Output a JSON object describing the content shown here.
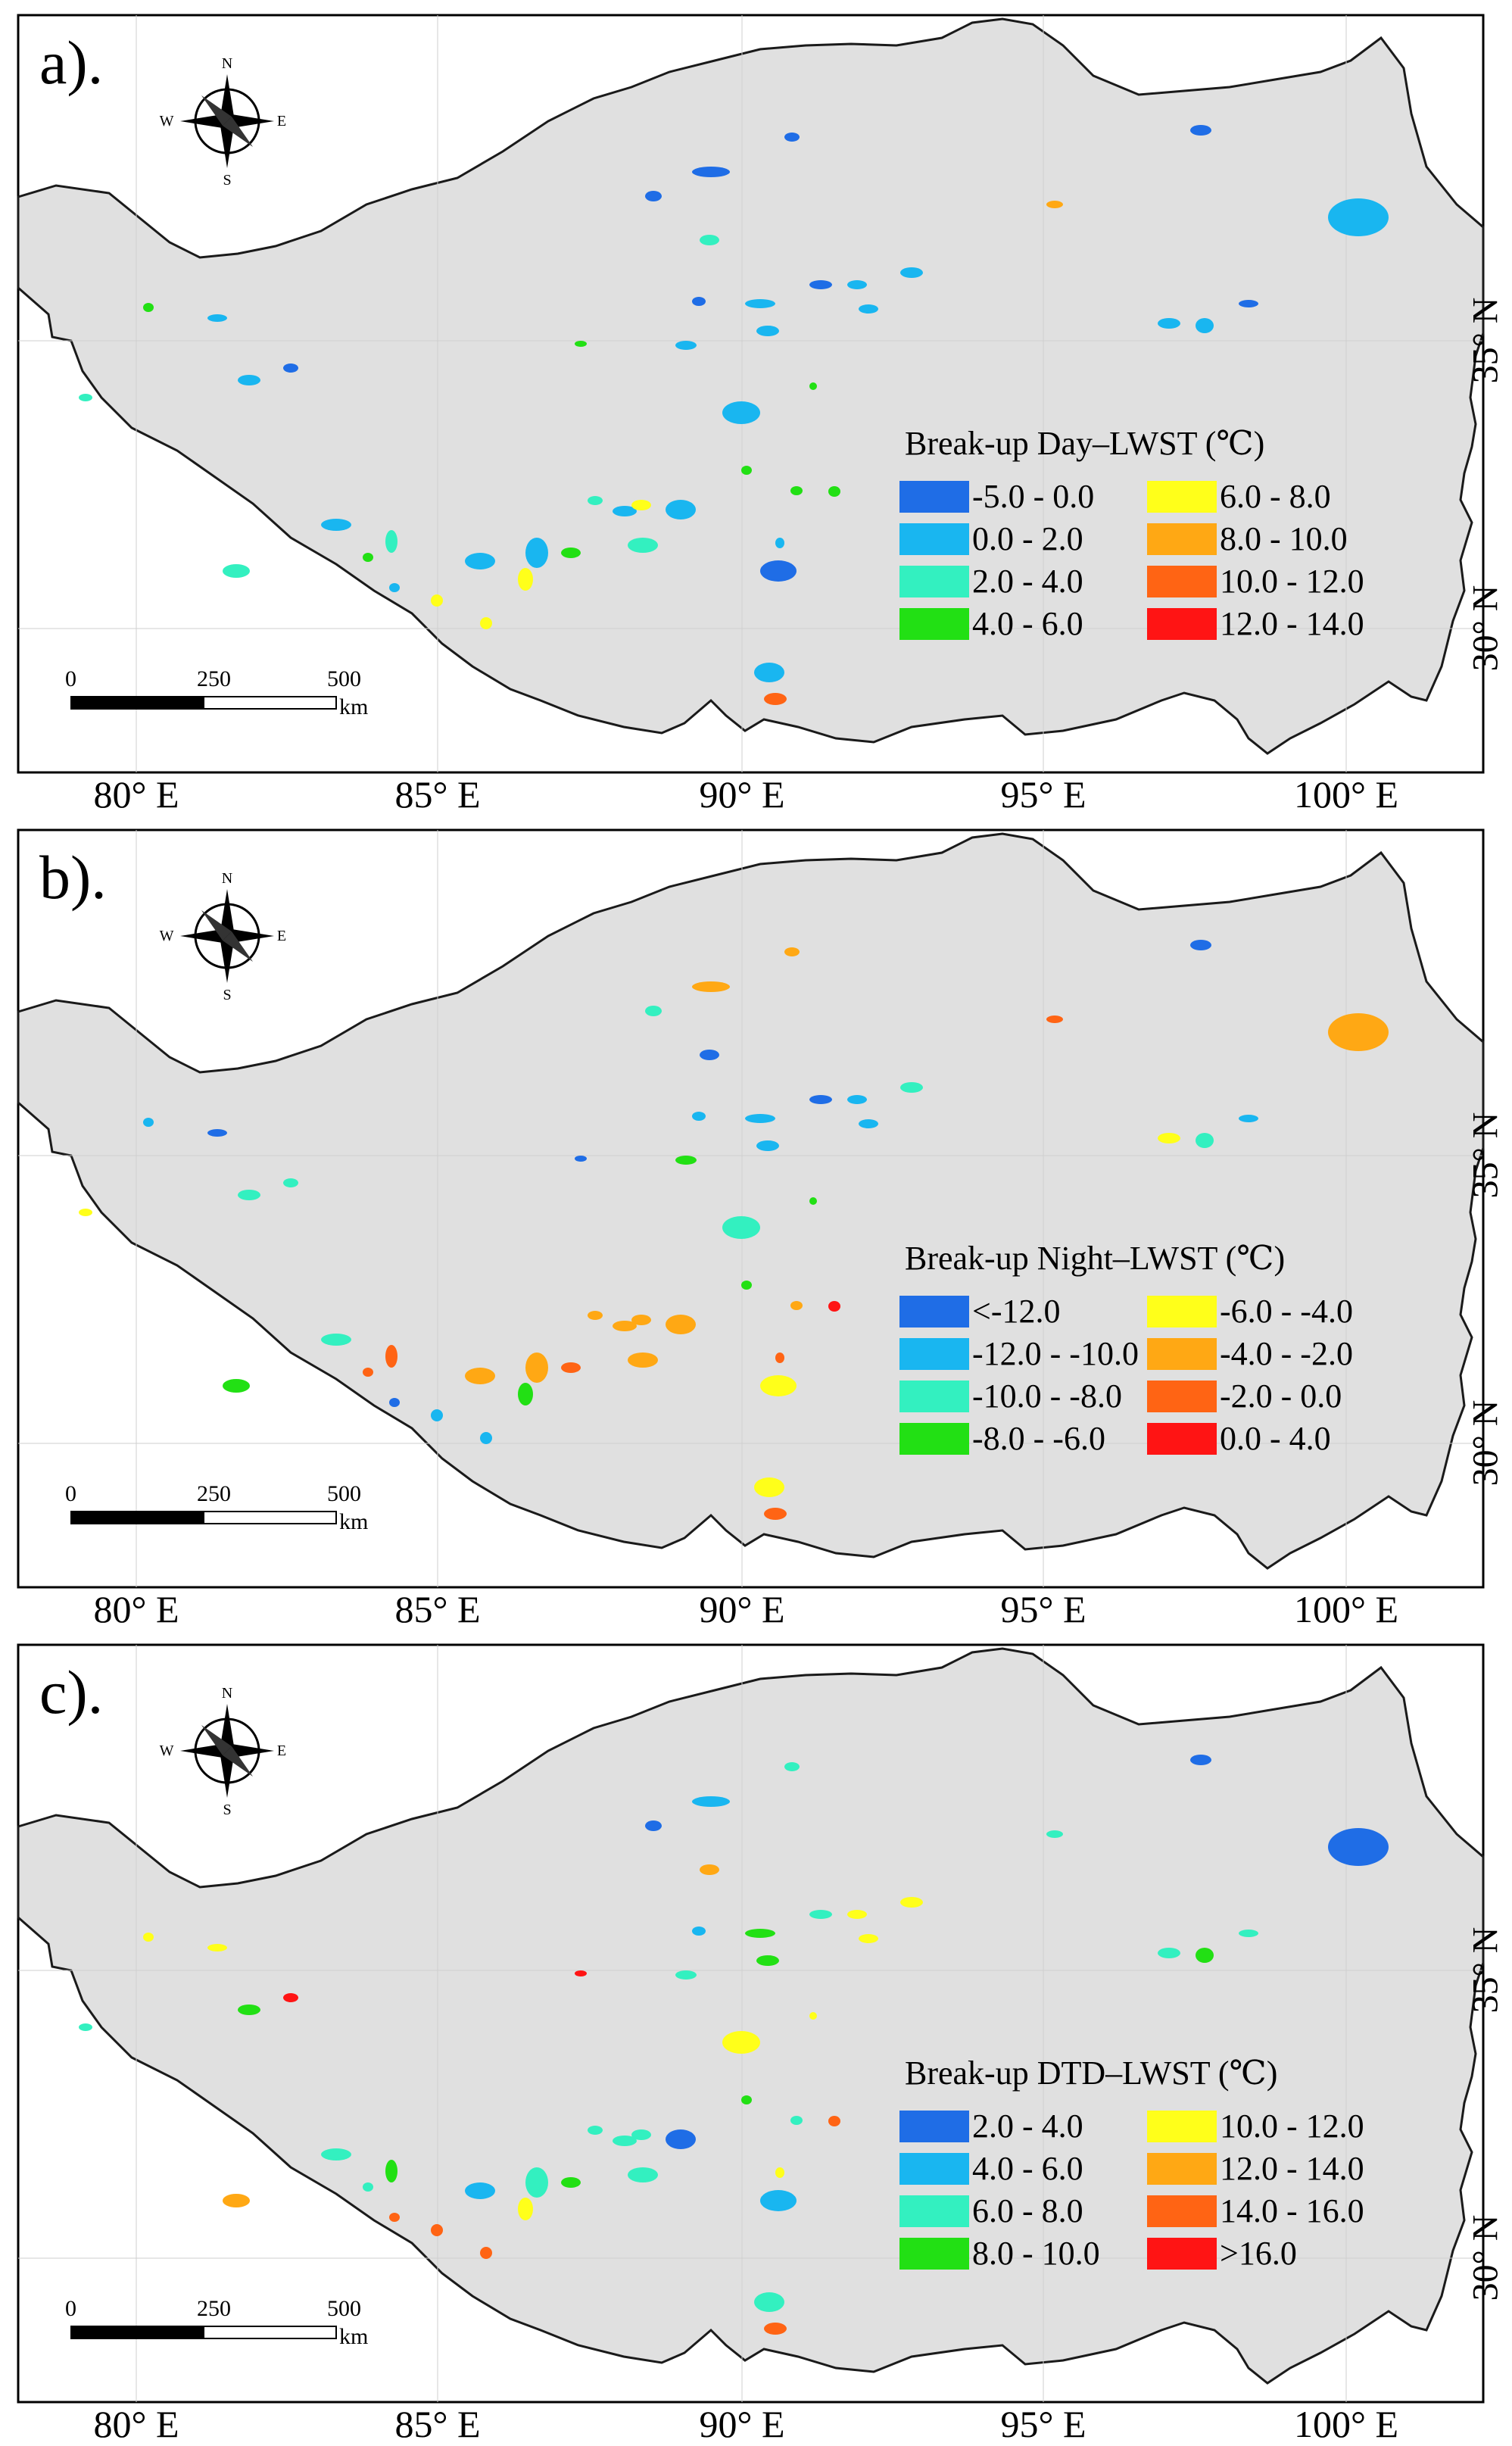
{
  "colors": {
    "land": "#e0e0e0",
    "border": "#1a1a1a"
  },
  "axes": {
    "x_ticks": [
      "80° E",
      "85° E",
      "90° E",
      "95° E",
      "100° E"
    ],
    "y_ticks": [
      "35° N",
      "30° N"
    ]
  },
  "compass": {
    "n": "N",
    "s": "S",
    "e": "E",
    "w": "W"
  },
  "scalebar": {
    "ticks": [
      "0",
      "250",
      "500"
    ],
    "unit": "km"
  },
  "panels": [
    {
      "label": "a).",
      "legend_title": "Break-up Day–LWST (℃)",
      "legend": [
        {
          "label": "-5.0 - 0.0",
          "color": "#1f6de6"
        },
        {
          "label": "0.0 - 2.0",
          "color": "#19b6f0"
        },
        {
          "label": "2.0 - 4.0",
          "color": "#33f0c0"
        },
        {
          "label": "4.0 - 6.0",
          "color": "#22e014"
        },
        {
          "label": "6.0 - 8.0",
          "color": "#ffff1a"
        },
        {
          "label": "8.0 - 10.0",
          "color": "#ffa814"
        },
        {
          "label": "10.0 - 12.0",
          "color": "#ff6414"
        },
        {
          "label": "12.0 - 14.0",
          "color": "#ff1414"
        }
      ]
    },
    {
      "label": "b).",
      "legend_title": "Break-up Night–LWST (℃)",
      "legend": [
        {
          "label": "<-12.0",
          "color": "#1f6de6"
        },
        {
          "label": "-12.0 - -10.0",
          "color": "#19b6f0"
        },
        {
          "label": "-10.0 - -8.0",
          "color": "#33f0c0"
        },
        {
          "label": "-8.0 - -6.0",
          "color": "#22e014"
        },
        {
          "label": "-6.0 - -4.0",
          "color": "#ffff1a"
        },
        {
          "label": "-4.0 - -2.0",
          "color": "#ffa814"
        },
        {
          "label": "-2.0 - 0.0",
          "color": "#ff6414"
        },
        {
          "label": "0.0 - 4.0",
          "color": "#ff1414"
        }
      ]
    },
    {
      "label": "c).",
      "legend_title": "Break-up DTD–LWST (℃)",
      "legend": [
        {
          "label": "2.0 - 4.0",
          "color": "#1f6de6"
        },
        {
          "label": "4.0 - 6.0",
          "color": "#19b6f0"
        },
        {
          "label": "6.0 - 8.0",
          "color": "#33f0c0"
        },
        {
          "label": "8.0 - 10.0",
          "color": "#22e014"
        },
        {
          "label": "10.0 - 12.0",
          "color": "#ffff1a"
        },
        {
          "label": "12.0 - 14.0",
          "color": "#ffa814"
        },
        {
          "label": "14.0 - 16.0",
          "color": "#ff6414"
        },
        {
          "label": ">16.0",
          "color": "#ff1414"
        }
      ]
    }
  ]
}
